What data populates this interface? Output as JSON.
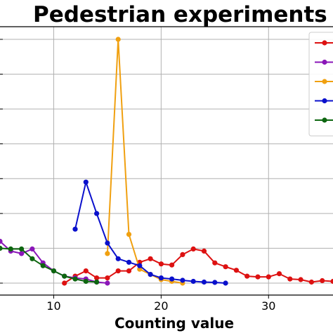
{
  "chart_data": {
    "type": "line",
    "title": "Pedestrian experiments",
    "xlabel": "Counting value",
    "ylabel": "",
    "xlim": [
      5.0,
      36.0
    ],
    "ylim": [
      -0.3,
      7.0
    ],
    "xticks": [
      10,
      20,
      30
    ],
    "yticks": [
      0,
      1,
      2,
      3,
      4,
      5,
      6,
      7
    ],
    "grid": true,
    "legend_position": "top-right",
    "series": [
      {
        "color": "#dd1111",
        "x": [
          11,
          12,
          13,
          14,
          15,
          16,
          17,
          18,
          19,
          20,
          21,
          22,
          23,
          24,
          25,
          26,
          27,
          28,
          29,
          30,
          31,
          32,
          33,
          34,
          35,
          36
        ],
        "y": [
          0.0,
          0.2,
          0.35,
          0.15,
          0.15,
          0.35,
          0.35,
          0.6,
          0.7,
          0.55,
          0.52,
          0.82,
          0.98,
          0.92,
          0.58,
          0.47,
          0.37,
          0.2,
          0.18,
          0.18,
          0.27,
          0.12,
          0.1,
          0.03,
          0.07,
          0.05
        ]
      },
      {
        "color": "#8a16b8",
        "x": [
          5,
          6,
          7,
          8,
          9,
          10,
          11,
          12,
          13,
          14,
          15
        ],
        "y": [
          1.2,
          0.92,
          0.85,
          0.98,
          0.58,
          0.35,
          0.2,
          0.15,
          0.12,
          0.03,
          0.0
        ]
      },
      {
        "color": "#f0a010",
        "x": [
          15,
          16,
          17,
          18,
          19,
          20,
          21,
          22
        ],
        "y": [
          0.85,
          7.0,
          1.4,
          0.4,
          0.25,
          0.1,
          0.05,
          0.0
        ]
      },
      {
        "color": "#0a10cc",
        "x": [
          12,
          13,
          14,
          15,
          16,
          17,
          18,
          19,
          20,
          21,
          22,
          23,
          24,
          25,
          26
        ],
        "y": [
          1.55,
          2.9,
          2.0,
          1.15,
          0.7,
          0.6,
          0.5,
          0.25,
          0.15,
          0.12,
          0.08,
          0.05,
          0.03,
          0.02,
          0.0
        ]
      },
      {
        "color": "#0d6610",
        "x": [
          5,
          6,
          7,
          8,
          9,
          10,
          11,
          12,
          13,
          14
        ],
        "y": [
          1.0,
          0.98,
          0.98,
          0.7,
          0.5,
          0.35,
          0.2,
          0.12,
          0.05,
          0.03
        ]
      }
    ]
  }
}
